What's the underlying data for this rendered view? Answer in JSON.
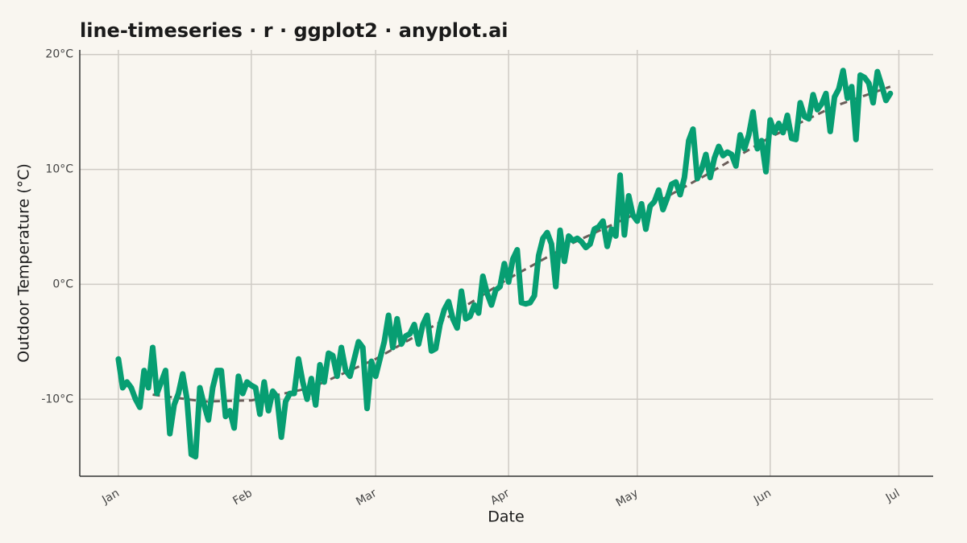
{
  "chart_data": {
    "type": "line",
    "title": "line-timeseries · r · ggplot2 · anyplot.ai",
    "x_label": "Date",
    "y_label": "Outdoor Temperature (°C)",
    "color": "#079e72",
    "x": [
      0,
      1,
      2,
      3,
      4,
      5,
      6,
      7,
      8,
      9,
      10,
      11,
      12,
      13,
      14,
      15,
      16,
      17,
      18,
      19,
      20,
      21,
      22,
      23,
      24,
      25,
      26,
      27,
      28,
      29,
      30,
      31,
      32,
      33,
      34,
      35,
      36,
      37,
      38,
      39,
      40,
      41,
      42,
      43,
      44,
      45,
      46,
      47,
      48,
      49,
      50,
      51,
      52,
      53,
      54,
      55,
      56,
      57,
      58,
      59,
      60,
      61,
      62,
      63,
      64,
      65,
      66,
      67,
      68,
      69,
      70,
      71,
      72,
      73,
      74,
      75,
      76,
      77,
      78,
      79,
      80,
      81,
      82,
      83,
      84,
      85,
      86,
      87,
      88,
      89,
      90,
      91,
      92,
      93,
      94,
      95,
      96,
      97,
      98,
      99,
      100,
      101,
      102,
      103,
      104,
      105,
      106,
      107,
      108,
      109,
      110,
      111,
      112,
      113,
      114,
      115,
      116,
      117,
      118,
      119,
      120,
      121,
      122,
      123,
      124,
      125,
      126,
      127,
      128,
      129,
      130,
      131,
      132,
      133,
      134,
      135,
      136,
      137,
      138,
      139,
      140,
      141,
      142,
      143,
      144,
      145,
      146,
      147,
      148,
      149,
      150,
      151,
      152,
      153,
      154,
      155,
      156,
      157,
      158,
      159,
      160,
      161,
      162,
      163,
      164,
      165,
      166,
      167,
      168,
      169,
      170,
      171,
      172,
      173,
      174,
      175,
      176,
      177,
      178,
      179,
      180
    ],
    "values": [
      -6.5,
      -9,
      -8.5,
      -9,
      -10,
      -10.7,
      -7.5,
      -9,
      -5.5,
      -9.5,
      -8.5,
      -7.5,
      -13,
      -10.5,
      -9.5,
      -7.8,
      -10,
      -14.8,
      -15,
      -9,
      -10.5,
      -11.8,
      -9,
      -7.5,
      -7.5,
      -11.5,
      -11,
      -12.5,
      -8,
      -9.5,
      -8.5,
      -8.8,
      -9,
      -11.3,
      -8.5,
      -11,
      -9.3,
      -9.8,
      -13.3,
      -10.2,
      -9.5,
      -9.5,
      -6.5,
      -8.5,
      -10,
      -8.2,
      -10.5,
      -7,
      -8.5,
      -6,
      -6.2,
      -8,
      -5.5,
      -7.5,
      -8,
      -6.5,
      -5,
      -5.5,
      -10.8,
      -6.7,
      -8,
      -6.5,
      -5,
      -2.7,
      -5.5,
      -3,
      -5.2,
      -4.5,
      -4.3,
      -3.5,
      -5.2,
      -3.5,
      -2.7,
      -5.8,
      -5.6,
      -3.5,
      -2.2,
      -1.5,
      -3,
      -3.8,
      -0.6,
      -3,
      -2.8,
      -1.8,
      -2.5,
      0.7,
      -0.8,
      -1.8,
      -0.5,
      -0.2,
      1.8,
      0.2,
      2.2,
      3,
      -1.6,
      -1.7,
      -1.6,
      -1,
      2.5,
      4,
      4.5,
      3.5,
      -0.2,
      4.7,
      2,
      4.2,
      3.8,
      4,
      3.7,
      3.2,
      3.5,
      4.8,
      5,
      5.5,
      3.3,
      4.8,
      4.2,
      9.5,
      4.3,
      7.7,
      6,
      5.5,
      7,
      4.8,
      6.8,
      7.2,
      8.2,
      6.5,
      7.5,
      8.7,
      8.9,
      7.8,
      9.3,
      12.5,
      13.5,
      9.2,
      10,
      11.3,
      9.3,
      11,
      12,
      11.2,
      11.5,
      11.3,
      10.3,
      13,
      11.8,
      13,
      15,
      11.8,
      12.5,
      9.8,
      14.3,
      13.2,
      14,
      13.2,
      14.7,
      12.7,
      12.6,
      15.8,
      14.6,
      14.4,
      16.5,
      15.2,
      15.7,
      16.6,
      13.3,
      16.3,
      17,
      18.6,
      16.2,
      17.2,
      12.6,
      18.2,
      18,
      17.5,
      15.8,
      18.5,
      17.3,
      16,
      16.6
    ],
    "trend": {
      "color": "#6b5e5a",
      "x": [
        8,
        20,
        31,
        45,
        60,
        75,
        91,
        106,
        121,
        137,
        152,
        167,
        180
      ],
      "values": [
        -9.6,
        -10.2,
        -10.1,
        -9,
        -6.5,
        -3.3,
        0.5,
        3.6,
        6.2,
        9.5,
        12.8,
        15.5,
        17.2
      ]
    },
    "xlim": [
      -9,
      190
    ],
    "xticks": [
      {
        "value": 0,
        "label": "Jan"
      },
      {
        "value": 31,
        "label": "Feb"
      },
      {
        "value": 60,
        "label": "Mar"
      },
      {
        "value": 91,
        "label": "Apr"
      },
      {
        "value": 121,
        "label": "May"
      },
      {
        "value": 152,
        "label": "Jun"
      },
      {
        "value": 182,
        "label": "Jul"
      }
    ],
    "ylim": [
      -16.7,
      20.4
    ],
    "yticks": [
      {
        "value": -10,
        "label": "-10°C"
      },
      {
        "value": 0,
        "label": "0°C"
      },
      {
        "value": 10,
        "label": "10°C"
      },
      {
        "value": 20,
        "label": "20°C"
      }
    ],
    "grid": true
  }
}
